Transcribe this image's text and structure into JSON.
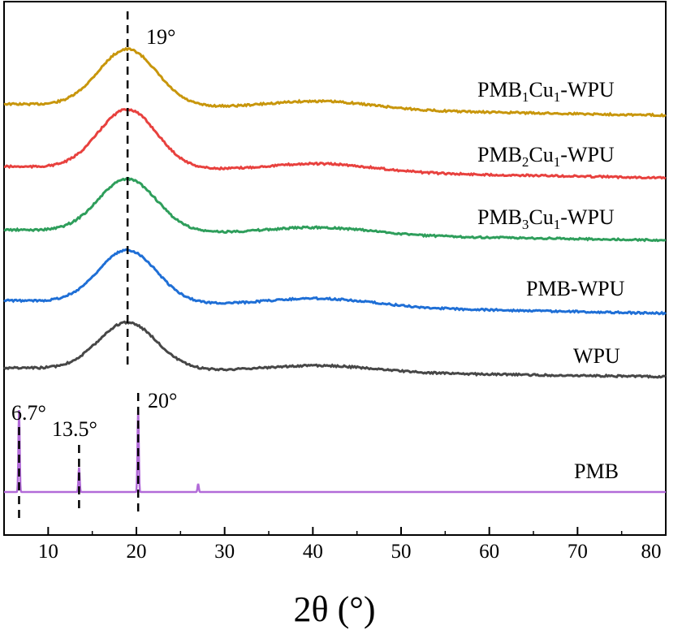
{
  "chart_data": {
    "type": "line",
    "title": "",
    "xlabel": "2θ (°)",
    "ylabel": "",
    "xlim": [
      5,
      80
    ],
    "xticks": [
      "10",
      "20",
      "30",
      "40",
      "50",
      "60",
      "70",
      "80"
    ],
    "y_ticks_shown": false,
    "colors": {
      "PMB1Cu1-WPU": "#c8960c",
      "PMB2Cu1-WPU": "#e8413e",
      "PMB3Cu1-WPU": "#2e9e5b",
      "PMB-WPU": "#1f6fd6",
      "WPU": "#474747",
      "PMB": "#b26bd8"
    },
    "series": [
      {
        "name": "PMB1Cu1-WPU",
        "label_base": "PMB",
        "label_sub1": "1",
        "label_mid": "Cu",
        "label_sub2": "1",
        "label_tail": "-WPU"
      },
      {
        "name": "PMB2Cu1-WPU",
        "label_base": "PMB",
        "label_sub1": "2",
        "label_mid": "Cu",
        "label_sub2": "1",
        "label_tail": "-WPU"
      },
      {
        "name": "PMB3Cu1-WPU",
        "label_base": "PMB",
        "label_sub1": "3",
        "label_mid": "Cu",
        "label_sub2": "1",
        "label_tail": "-WPU"
      },
      {
        "name": "PMB-WPU",
        "label": "PMB-WPU"
      },
      {
        "name": "WPU",
        "label": "WPU"
      },
      {
        "name": "PMB",
        "label": "PMB",
        "peaks": [
          6.7,
          13.5,
          20.2,
          27.0
        ],
        "peak_intensity": [
          1.0,
          0.3,
          1.0,
          0.1
        ]
      }
    ],
    "broad_peak_center": 19,
    "annotations": [
      {
        "text": "19°",
        "x": 19
      },
      {
        "text": "20°",
        "x": 20.2
      },
      {
        "text": "13.5°",
        "x": 13.5
      },
      {
        "text": "6.7°",
        "x": 6.7
      }
    ]
  }
}
